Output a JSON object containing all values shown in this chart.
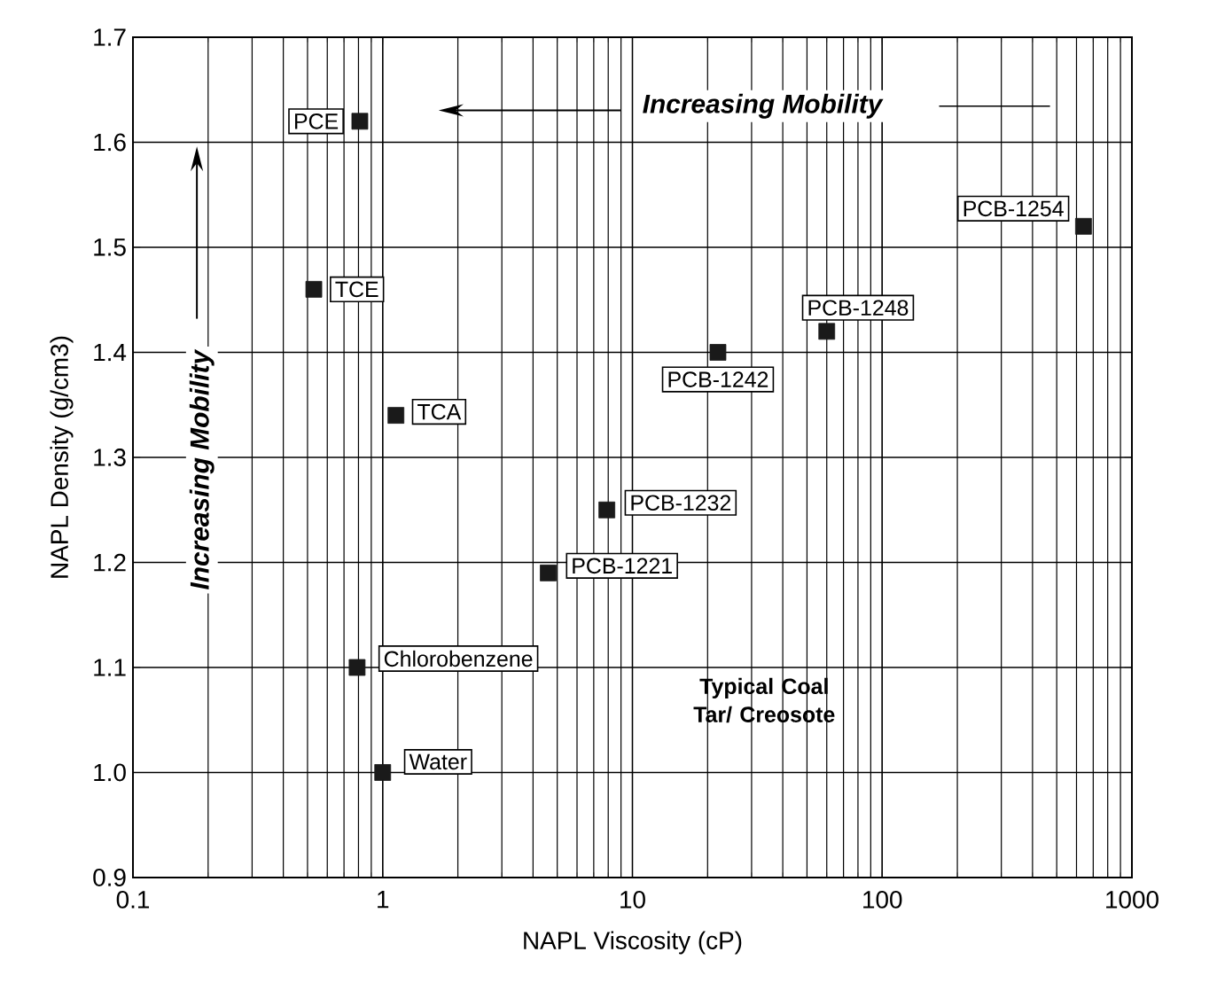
{
  "chart_data": {
    "type": "scatter",
    "xlabel": "NAPL Viscosity (cP)",
    "ylabel": "NAPL Density (g/cm3)",
    "x": [
      0.81,
      0.53,
      1.13,
      0.79,
      1.0,
      4.6,
      7.9,
      22,
      60,
      640
    ],
    "values": [
      1.62,
      1.46,
      1.34,
      1.1,
      1.0,
      1.19,
      1.25,
      1.4,
      1.42,
      1.52
    ],
    "color": "#1a1a1a",
    "marker": "square",
    "log": "x",
    "grid": true,
    "xlim": [
      0.1,
      1000
    ],
    "xticks": [
      0.1,
      1,
      10,
      100,
      1000
    ],
    "ylim": [
      0.9,
      1.7
    ],
    "yticks": [
      0.9,
      {
        "value": 1.0,
        "label": "1.0"
      },
      1.1,
      1.2,
      1.3,
      1.4,
      1.5,
      1.6,
      1.7
    ],
    "annotations": [
      "Increasing Mobility",
      "Increasing Mobility",
      "Typical Coal Tar/ Creosote",
      {
        "text": "PCE",
        "x": 0.81,
        "y": 1.62
      },
      {
        "text": "TCE",
        "x": 0.53,
        "y": 1.46
      },
      {
        "text": "TCA",
        "x": 1.13,
        "y": 1.34
      },
      {
        "text": "Chlorobenzene",
        "x": 0.79,
        "y": 1.1
      },
      {
        "text": "Water",
        "x": 1.0,
        "y": 1.0
      },
      {
        "text": "PCB-1221",
        "x": 4.6,
        "y": 1.19
      },
      {
        "text": "PCB-1232",
        "x": 7.9,
        "y": 1.25
      },
      {
        "text": "PCB-1242",
        "x": 22,
        "y": 1.4
      },
      {
        "text": "PCB-1248",
        "x": 60,
        "y": 1.42
      },
      {
        "text": "PCB-1254",
        "x": 640,
        "y": 1.52
      }
    ]
  }
}
